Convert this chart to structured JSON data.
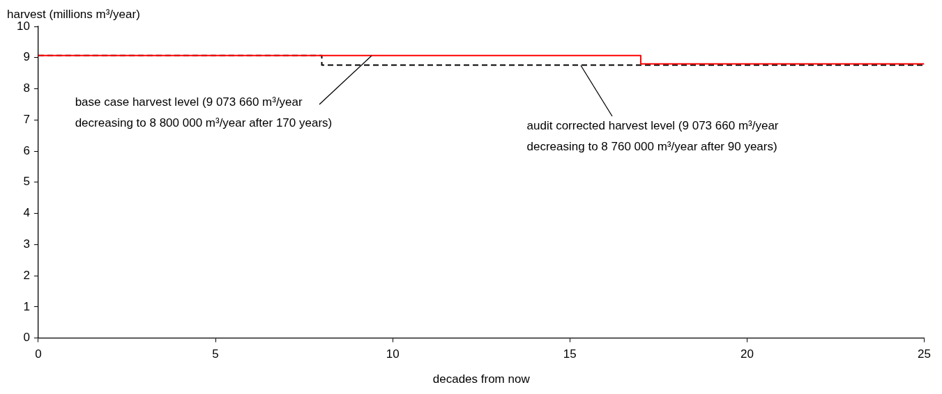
{
  "chart_data": {
    "type": "step",
    "ylabel": "harvest (millions m³/year)",
    "xlabel": "decades from now",
    "xlim": [
      0,
      25
    ],
    "xticks": [
      0,
      5,
      10,
      15,
      20,
      25
    ],
    "ylim": [
      0,
      10
    ],
    "yticks": [
      0,
      1,
      2,
      3,
      4,
      5,
      6,
      7,
      8,
      9,
      10
    ],
    "grid": false,
    "legend": false,
    "marker": "none",
    "series": [
      {
        "color": "#ff0000",
        "line_style": "solid",
        "x": [
          0,
          17,
          25
        ],
        "values": [
          9.07,
          8.8,
          8.8
        ]
      },
      {
        "color": "#000000",
        "line_style": "dashed",
        "x": [
          0,
          8,
          25
        ],
        "values": [
          9.07,
          8.76,
          8.76
        ]
      }
    ],
    "annotations": [
      {
        "text": "base case harvest level (9 073 660 m³/year decreasing to 8 800 000 m³/year after 170 years)",
        "x": 9.4,
        "y": 9.07
      },
      {
        "text": "audit corrected harvest level (9 073 660 m³/year decreasing to 8 760 000 m³/year after 90 years)",
        "x": 15.3,
        "y": 8.76
      }
    ]
  }
}
